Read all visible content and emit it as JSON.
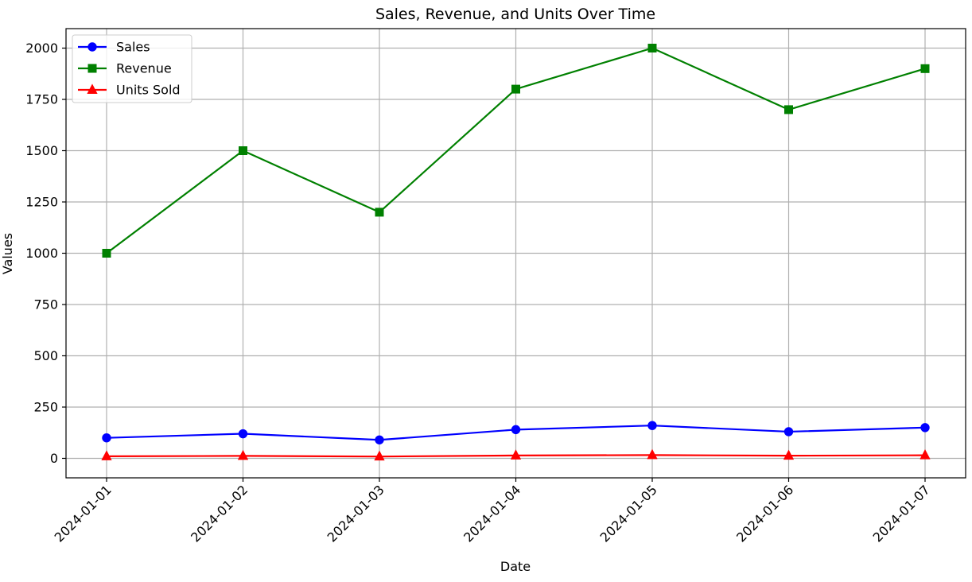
{
  "chart_data": {
    "type": "line",
    "title": "Sales, Revenue, and Units Over Time",
    "xlabel": "Date",
    "ylabel": "Values",
    "x": [
      "2024-01-01",
      "2024-01-02",
      "2024-01-03",
      "2024-01-04",
      "2024-01-05",
      "2024-01-06",
      "2024-01-07"
    ],
    "series": [
      {
        "name": "Sales",
        "values": [
          100,
          120,
          90,
          140,
          160,
          130,
          150
        ],
        "color": "#0000ff",
        "marker": "circle"
      },
      {
        "name": "Revenue",
        "values": [
          1000,
          1500,
          1200,
          1800,
          2000,
          1700,
          1900
        ],
        "color": "#008000",
        "marker": "square"
      },
      {
        "name": "Units Sold",
        "values": [
          10,
          12,
          9,
          14,
          16,
          13,
          15
        ],
        "color": "#ff0000",
        "marker": "triangle"
      }
    ],
    "ylim": [
      -95,
      2095
    ],
    "yticks": [
      0,
      250,
      500,
      750,
      1000,
      1250,
      1500,
      1750,
      2000
    ],
    "grid": true,
    "legend_position": "top-left"
  }
}
